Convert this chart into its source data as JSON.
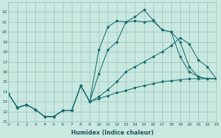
{
  "xlabel": "Humidex (Indice chaleur)",
  "background_color": "#c8e8e0",
  "grid_color": "#9bbfbf",
  "line_color": "#1a6e6e",
  "xlim": [
    0,
    23
  ],
  "ylim": [
    11,
    23
  ],
  "xticks": [
    0,
    1,
    2,
    3,
    4,
    5,
    6,
    7,
    8,
    9,
    10,
    11,
    12,
    13,
    14,
    15,
    16,
    17,
    18,
    19,
    20,
    21,
    22,
    23
  ],
  "yticks": [
    11,
    12,
    13,
    14,
    15,
    16,
    17,
    18,
    19,
    20,
    21,
    22
  ],
  "s1_x": [
    0,
    1,
    2,
    3,
    4,
    5,
    6,
    7,
    8,
    9,
    10,
    11,
    12,
    13,
    14,
    15,
    16,
    17,
    18,
    19,
    20,
    21,
    22,
    23
  ],
  "s1_y": [
    13.8,
    12.4,
    12.7,
    12.2,
    11.5,
    11.5,
    12.1,
    12.1,
    14.6,
    13.0,
    13.3,
    13.6,
    13.9,
    14.1,
    14.4,
    14.6,
    14.8,
    15.0,
    15.1,
    15.2,
    15.3,
    15.3,
    15.3,
    15.3
  ],
  "s2_x": [
    0,
    1,
    2,
    3,
    4,
    5,
    6,
    7,
    8,
    9,
    10,
    11,
    12,
    13,
    14,
    15,
    16,
    17,
    18,
    19,
    20,
    21,
    22,
    23
  ],
  "s2_y": [
    13.8,
    12.4,
    12.7,
    12.2,
    11.5,
    11.5,
    12.1,
    12.1,
    14.6,
    13.0,
    13.5,
    14.2,
    15.0,
    16.0,
    16.5,
    17.0,
    17.5,
    18.0,
    18.6,
    19.4,
    18.8,
    17.2,
    16.5,
    15.3
  ],
  "s3_x": [
    0,
    1,
    2,
    3,
    4,
    5,
    6,
    7,
    8,
    9,
    10,
    11,
    12,
    13,
    14,
    15,
    16,
    17,
    18,
    19,
    20,
    21,
    22,
    23
  ],
  "s3_y": [
    13.8,
    12.4,
    12.7,
    12.2,
    11.5,
    11.5,
    12.1,
    12.1,
    14.6,
    13.0,
    15.8,
    18.2,
    19.0,
    21.0,
    21.1,
    21.0,
    21.1,
    20.2,
    20.0,
    19.0,
    16.5,
    15.5,
    15.3,
    15.3
  ],
  "s4_x": [
    0,
    1,
    2,
    3,
    4,
    5,
    6,
    7,
    8,
    9,
    10,
    11,
    12,
    13,
    14,
    15,
    16,
    17,
    18,
    19,
    20,
    21,
    22,
    23
  ],
  "s4_y": [
    13.8,
    12.4,
    12.7,
    12.2,
    11.5,
    11.5,
    12.1,
    12.1,
    14.6,
    13.0,
    18.2,
    20.5,
    21.1,
    21.0,
    21.5,
    22.2,
    21.2,
    20.2,
    20.0,
    17.5,
    16.0,
    15.5,
    15.3,
    15.3
  ]
}
